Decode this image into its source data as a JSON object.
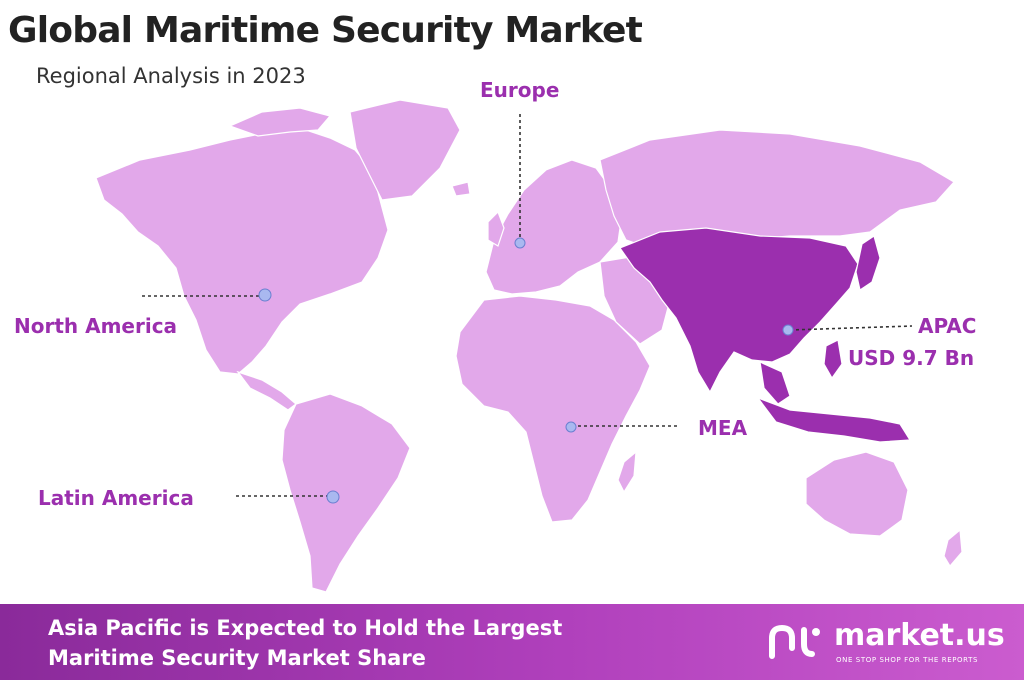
{
  "header": {
    "title": "Global Maritime Security Market",
    "subtitle": "Regional Analysis in 2023"
  },
  "map": {
    "base_color": "#e2a8ea",
    "highlight_color": "#9b2fae",
    "marker_color": "#a9b8f0",
    "regions": [
      {
        "name": "Europe",
        "highlighted": false
      },
      {
        "name": "North America",
        "highlighted": false
      },
      {
        "name": "APAC",
        "value": "USD 9.7 Bn",
        "highlighted": true
      },
      {
        "name": "MEA",
        "highlighted": false
      },
      {
        "name": "Latin America",
        "highlighted": false
      }
    ]
  },
  "footer": {
    "line1": "Asia Pacific is Expected to Hold the Largest",
    "line2": "Maritime Security Market Share",
    "brand": "market.us",
    "tagline": "ONE STOP SHOP FOR THE REPORTS"
  }
}
